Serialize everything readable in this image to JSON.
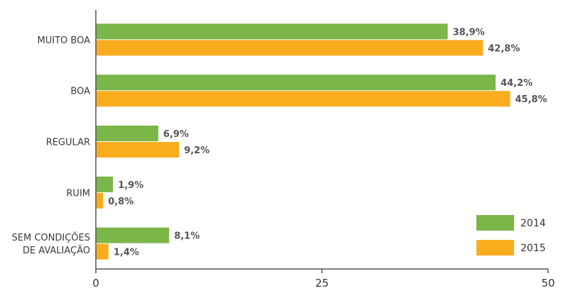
{
  "chart_data": {
    "type": "bar",
    "orientation": "horizontal",
    "categories": [
      [
        "MUITO BOA"
      ],
      [
        "BOA"
      ],
      [
        "REGULAR"
      ],
      [
        "RUIM"
      ],
      [
        "SEM CONDIÇÕES",
        "DE AVALIAÇÃO"
      ]
    ],
    "series": [
      {
        "name": "2014",
        "color": "#7ab648",
        "values": [
          38.9,
          44.2,
          6.9,
          1.9,
          8.1
        ],
        "labels": [
          "38,9%",
          "44,2%",
          "6,9%",
          "1,9%",
          "8,1%"
        ]
      },
      {
        "name": "2015",
        "color": "#f9ac1e",
        "values": [
          42.8,
          45.8,
          9.2,
          0.8,
          1.4
        ],
        "labels": [
          "42,8%",
          "45,8%",
          "9,2%",
          "0,8%",
          "1,4%"
        ]
      }
    ],
    "xlim": [
      0,
      50
    ],
    "xticks": [
      0,
      25,
      50
    ],
    "xtick_labels": [
      "0",
      "25",
      "50"
    ],
    "grid": false,
    "legend_position": "bottom-right"
  }
}
